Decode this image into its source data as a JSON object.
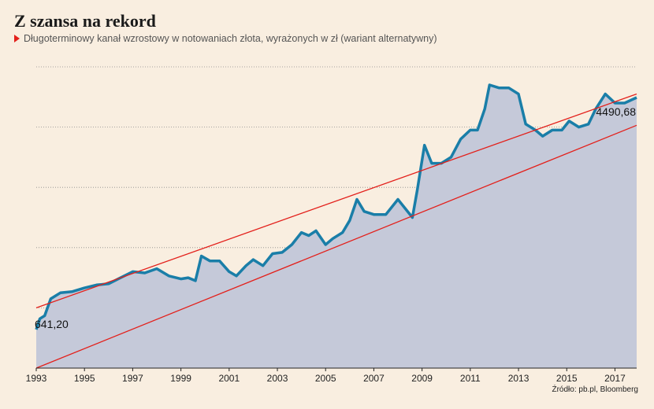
{
  "header": {
    "title": "Z szansa na rekord",
    "subtitle": "Długoterminowy kanał wzrostowy w notowaniach złota, wyrażonych w zł (wariant alternatywny)"
  },
  "source": "Źródło: pb.pl, Bloomberg",
  "colors": {
    "background": "#f9eee0",
    "area_fill": "#c5c9d9",
    "series_line": "#1a7ea8",
    "channel_line": "#e3201b",
    "marker": "#e3201b"
  },
  "chart_data": {
    "type": "area",
    "title": "Z szansa na rekord",
    "subtitle": "Długoterminowy kanał wzrostowy w notowaniach złota, wyrażonych w zł (wariant alternatywny)",
    "xlabel": "",
    "ylabel": "",
    "xlim": [
      1993,
      2017.9
    ],
    "ylim": [
      0,
      5000
    ],
    "grid": "horizontal dotted",
    "x_ticks": [
      "1993",
      "1995",
      "1997",
      "1999",
      "2001",
      "2003",
      "2005",
      "2007",
      "2009",
      "2011",
      "2013",
      "2015",
      "2017"
    ],
    "annotations": [
      {
        "label": "641,20",
        "x": 1993.0,
        "y": 641.2
      },
      {
        "label": "4490,68",
        "x": 2017.9,
        "y": 4490.68
      }
    ],
    "channel_lines": [
      {
        "name": "upper",
        "points": [
          [
            1993,
            1000
          ],
          [
            2017.9,
            4550
          ]
        ]
      },
      {
        "name": "lower",
        "points": [
          [
            1993,
            0
          ],
          [
            2017.9,
            4030
          ]
        ]
      }
    ],
    "series": [
      {
        "values": [
          [
            1993.0,
            641
          ],
          [
            1993.15,
            820
          ],
          [
            1993.35,
            870
          ],
          [
            1993.6,
            1150
          ],
          [
            1994.0,
            1250
          ],
          [
            1994.5,
            1270
          ],
          [
            1995.0,
            1330
          ],
          [
            1995.5,
            1380
          ],
          [
            1996.0,
            1400
          ],
          [
            1996.5,
            1500
          ],
          [
            1997.0,
            1600
          ],
          [
            1997.5,
            1580
          ],
          [
            1998.0,
            1650
          ],
          [
            1998.5,
            1530
          ],
          [
            1999.0,
            1480
          ],
          [
            1999.3,
            1500
          ],
          [
            1999.6,
            1450
          ],
          [
            1999.85,
            1860
          ],
          [
            2000.2,
            1780
          ],
          [
            2000.6,
            1780
          ],
          [
            2001.0,
            1600
          ],
          [
            2001.3,
            1530
          ],
          [
            2001.7,
            1700
          ],
          [
            2002.0,
            1800
          ],
          [
            2002.4,
            1700
          ],
          [
            2002.8,
            1900
          ],
          [
            2003.2,
            1920
          ],
          [
            2003.6,
            2050
          ],
          [
            2004.0,
            2250
          ],
          [
            2004.3,
            2200
          ],
          [
            2004.6,
            2280
          ],
          [
            2005.0,
            2050
          ],
          [
            2005.3,
            2150
          ],
          [
            2005.7,
            2250
          ],
          [
            2006.0,
            2450
          ],
          [
            2006.3,
            2800
          ],
          [
            2006.6,
            2600
          ],
          [
            2007.0,
            2550
          ],
          [
            2007.5,
            2550
          ],
          [
            2008.0,
            2800
          ],
          [
            2008.3,
            2650
          ],
          [
            2008.6,
            2500
          ],
          [
            2008.8,
            2950
          ],
          [
            2009.1,
            3700
          ],
          [
            2009.4,
            3400
          ],
          [
            2009.8,
            3400
          ],
          [
            2010.2,
            3500
          ],
          [
            2010.6,
            3800
          ],
          [
            2011.0,
            3950
          ],
          [
            2011.3,
            3950
          ],
          [
            2011.6,
            4300
          ],
          [
            2011.8,
            4700
          ],
          [
            2012.2,
            4650
          ],
          [
            2012.6,
            4650
          ],
          [
            2013.0,
            4550
          ],
          [
            2013.3,
            4050
          ],
          [
            2013.7,
            3950
          ],
          [
            2014.0,
            3850
          ],
          [
            2014.4,
            3950
          ],
          [
            2014.8,
            3950
          ],
          [
            2015.1,
            4100
          ],
          [
            2015.5,
            4000
          ],
          [
            2015.9,
            4050
          ],
          [
            2016.2,
            4300
          ],
          [
            2016.6,
            4550
          ],
          [
            2017.0,
            4400
          ],
          [
            2017.4,
            4400
          ],
          [
            2017.9,
            4490.68
          ]
        ]
      }
    ]
  }
}
